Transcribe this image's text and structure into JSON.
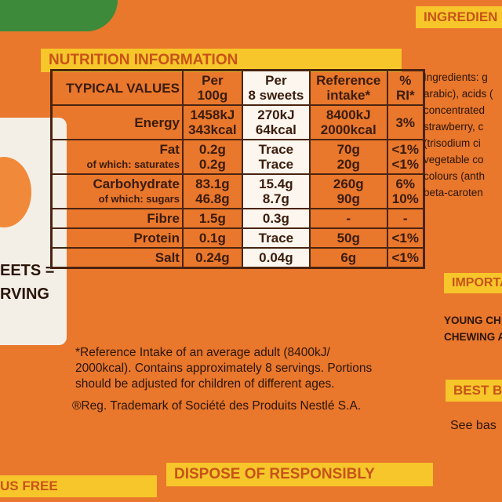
{
  "header": {
    "title": "NUTRITION INFORMATION"
  },
  "table": {
    "columns": [
      [
        "TYPICAL VALUES"
      ],
      [
        "Per",
        "100g"
      ],
      [
        "Per",
        "8 sweets"
      ],
      [
        "Reference",
        "intake*"
      ],
      [
        "%",
        "RI*"
      ]
    ],
    "rows": [
      [
        [
          "Energy"
        ],
        [
          "1458kJ",
          "343kcal"
        ],
        [
          "270kJ",
          "64kcal"
        ],
        [
          "8400kJ",
          "2000kcal"
        ],
        [
          "3%"
        ]
      ],
      [
        [
          "Fat",
          "of which: saturates"
        ],
        [
          "0.2g",
          "0.2g"
        ],
        [
          "Trace",
          "Trace"
        ],
        [
          "70g",
          "20g"
        ],
        [
          "<1%",
          "<1%"
        ]
      ],
      [
        [
          "Carbohydrate",
          "of which: sugars"
        ],
        [
          "83.1g",
          "46.8g"
        ],
        [
          "15.4g",
          "8.7g"
        ],
        [
          "260g",
          "90g"
        ],
        [
          "6%",
          "10%"
        ]
      ],
      [
        [
          "Fibre"
        ],
        [
          "1.5g"
        ],
        [
          "0.3g"
        ],
        [
          "-"
        ],
        [
          "-"
        ]
      ],
      [
        [
          "Protein"
        ],
        [
          "0.1g"
        ],
        [
          "Trace"
        ],
        [
          "50g"
        ],
        [
          "<1%"
        ]
      ],
      [
        [
          "Salt"
        ],
        [
          "0.24g"
        ],
        [
          "0.04g"
        ],
        [
          "6g"
        ],
        [
          "<1%"
        ]
      ]
    ]
  },
  "footnote": [
    "*Reference Intake of an average adult (8400kJ/",
    "2000kcal). Contains approximately 8 servings. Portions",
    "should be adjusted for children of different ages."
  ],
  "trademark": "®Reg. Trademark of Société des Produits Nestlé S.A.",
  "left": [
    "EETS =",
    "RVING"
  ],
  "sidebar": {
    "ingredients_title": "INGREDIEN",
    "ingredients": [
      "Ingredients: g",
      "arabic), acids (",
      "concentrated",
      "strawberry, c",
      "(trisodium ci",
      "vegetable co",
      "colours (anth",
      "beta-caroten"
    ],
    "important": "IMPORTA",
    "young": [
      "YOUNG CH",
      "CHEWING A"
    ],
    "best": "BEST B",
    "see": "See bas"
  },
  "bottom": [
    "US FREE",
    "DISPOSE OF RESPONSIBLY"
  ]
}
